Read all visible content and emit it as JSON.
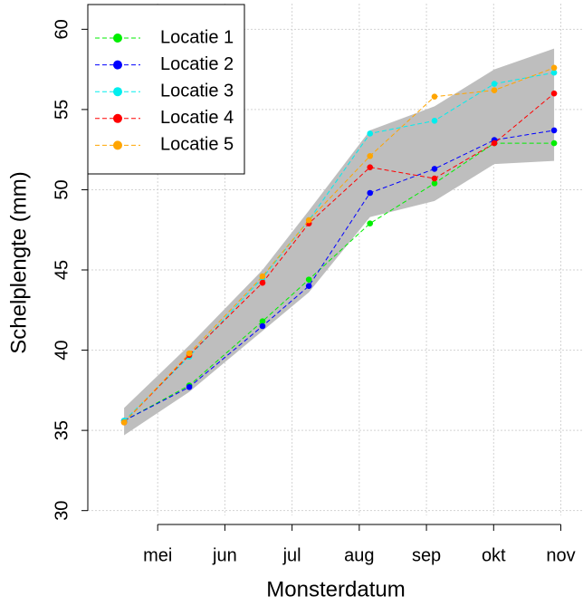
{
  "chart_data": {
    "type": "line",
    "x_label": "Monsterdatum",
    "y_label": "Schelplengte (mm)",
    "x": [
      4.5,
      5.47,
      6.56,
      7.25,
      8.16,
      9.12,
      10.01,
      10.9
    ],
    "xlim": [
      3.96,
      11.33
    ],
    "xticks": [
      {
        "value": 5,
        "label": "mei"
      },
      {
        "value": 6,
        "label": "jun"
      },
      {
        "value": 7,
        "label": "jul"
      },
      {
        "value": 8,
        "label": "aug"
      },
      {
        "value": 9,
        "label": "sep"
      },
      {
        "value": 10,
        "label": "okt"
      },
      {
        "value": 11,
        "label": "nov"
      }
    ],
    "ylim": [
      29.7,
      61.6
    ],
    "yticks": [
      30,
      35,
      40,
      45,
      50,
      55,
      60
    ],
    "grid": true,
    "legend": "top-left",
    "band": {
      "color": "#bebebe",
      "upper": [
        36.4,
        40.3,
        45.0,
        48.7,
        53.7,
        55.2,
        57.5,
        58.8
      ],
      "lower": [
        34.7,
        37.4,
        41.2,
        43.6,
        48.3,
        49.3,
        51.6,
        51.8
      ]
    },
    "series": [
      {
        "name": "Locatie 1",
        "color": "#00ee00",
        "values": [
          35.6,
          37.8,
          41.8,
          44.4,
          47.9,
          50.4,
          52.9,
          52.9
        ]
      },
      {
        "name": "Locatie 2",
        "color": "#0000ff",
        "values": [
          35.6,
          37.7,
          41.5,
          44.0,
          49.8,
          51.3,
          53.1,
          53.7
        ]
      },
      {
        "name": "Locatie 3",
        "color": "#00eeee",
        "values": [
          35.6,
          39.6,
          44.5,
          48.1,
          53.5,
          54.3,
          56.6,
          57.3
        ]
      },
      {
        "name": "Locatie 4",
        "color": "#ff0000",
        "values": [
          35.5,
          39.7,
          44.2,
          47.9,
          51.4,
          50.7,
          52.9,
          56.0
        ]
      },
      {
        "name": "Locatie 5",
        "color": "#ffa500",
        "values": [
          35.5,
          39.8,
          44.6,
          48.1,
          52.1,
          55.8,
          56.2,
          57.6
        ]
      }
    ]
  }
}
